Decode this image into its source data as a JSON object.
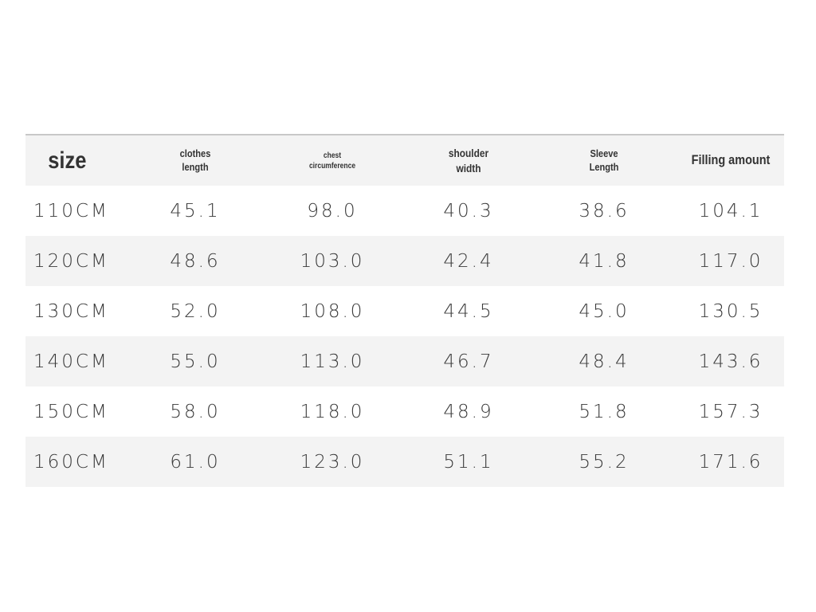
{
  "table": {
    "header": [
      [
        "size"
      ],
      [
        "clothes",
        "length"
      ],
      [
        "chest",
        "circumference"
      ],
      [
        "shoulder",
        "width"
      ],
      [
        "Sleeve",
        "Length"
      ],
      [
        "Filling amount"
      ]
    ],
    "rows": [
      [
        "110CM",
        "45.1",
        "98.0",
        "40.3",
        "38.6",
        "104.1"
      ],
      [
        "120CM",
        "48.6",
        "103.0",
        "42.4",
        "41.8",
        "117.0"
      ],
      [
        "130CM",
        "52.0",
        "108.0",
        "44.5",
        "45.0",
        "130.5"
      ],
      [
        "140CM",
        "55.0",
        "113.0",
        "46.7",
        "48.4",
        "143.6"
      ],
      [
        "150CM",
        "58.0",
        "118.0",
        "48.9",
        "51.8",
        "157.3"
      ],
      [
        "160CM",
        "61.0",
        "123.0",
        "51.1",
        "55.2",
        "171.6"
      ]
    ]
  }
}
